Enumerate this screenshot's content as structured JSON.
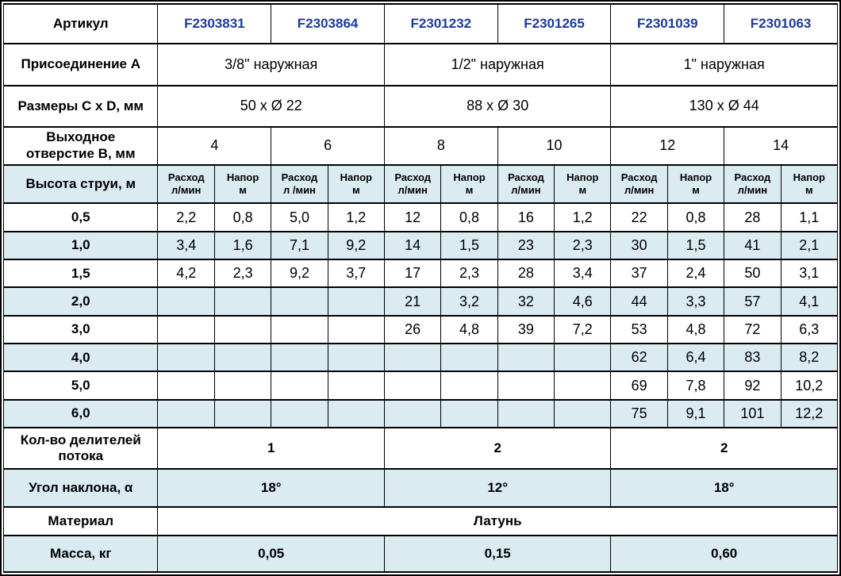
{
  "colors": {
    "row_shade": "#daebf2",
    "article_blue": "#1c3aa0",
    "border": "#000000",
    "background": "#ffffff"
  },
  "table": {
    "article": {
      "label": "Артикул",
      "values": [
        "F2303831",
        "F2303864",
        "F2301232",
        "F2301265",
        "F2301039",
        "F2301063"
      ]
    },
    "connection": {
      "label": "Присоединение А",
      "values": [
        "3/8\" наружная",
        "1/2\" наружная",
        "1\" наружная"
      ]
    },
    "dimensions": {
      "label": "Размеры C x D, мм",
      "values": [
        "50 x Ø 22",
        "88 x Ø 30",
        "130 x Ø 44"
      ]
    },
    "outlet": {
      "label_line1": "Выходное",
      "label_line2": "отверстие B, мм",
      "values": [
        "4",
        "6",
        "8",
        "10",
        "12",
        "14"
      ]
    },
    "jet": {
      "label": "Высота струи, м",
      "columns": [
        {
          "line1": "Расход",
          "line2": "л/мин"
        },
        {
          "line1": "Напор",
          "line2": "м"
        },
        {
          "line1": "Расход",
          "line2": "л /мин"
        },
        {
          "line1": "Напор",
          "line2": "м"
        },
        {
          "line1": "Расход",
          "line2": "л/мин"
        },
        {
          "line1": "Напор",
          "line2": "м"
        },
        {
          "line1": "Расход",
          "line2": "л/мин"
        },
        {
          "line1": "Напор",
          "line2": "м"
        },
        {
          "line1": "Расход",
          "line2": "л/мин"
        },
        {
          "line1": "Напор",
          "line2": "м"
        },
        {
          "line1": "Расход",
          "line2": "л/мин"
        },
        {
          "line1": "Напор",
          "line2": "м"
        }
      ]
    },
    "data_rows": [
      {
        "height": "0,5",
        "shaded": false,
        "values": [
          "2,2",
          "0,8",
          "5,0",
          "1,2",
          "12",
          "0,8",
          "16",
          "1,2",
          "22",
          "0,8",
          "28",
          "1,1"
        ]
      },
      {
        "height": "1,0",
        "shaded": true,
        "values": [
          "3,4",
          "1,6",
          "7,1",
          "9,2",
          "14",
          "1,5",
          "23",
          "2,3",
          "30",
          "1,5",
          "41",
          "2,1"
        ]
      },
      {
        "height": "1,5",
        "shaded": false,
        "values": [
          "4,2",
          "2,3",
          "9,2",
          "3,7",
          "17",
          "2,3",
          "28",
          "3,4",
          "37",
          "2,4",
          "50",
          "3,1"
        ]
      },
      {
        "height": "2,0",
        "shaded": true,
        "values": [
          "",
          "",
          "",
          "",
          "21",
          "3,2",
          "32",
          "4,6",
          "44",
          "3,3",
          "57",
          "4,1"
        ]
      },
      {
        "height": "3,0",
        "shaded": false,
        "values": [
          "",
          "",
          "",
          "",
          "26",
          "4,8",
          "39",
          "7,2",
          "53",
          "4,8",
          "72",
          "6,3"
        ]
      },
      {
        "height": "4,0",
        "shaded": true,
        "values": [
          "",
          "",
          "",
          "",
          "",
          "",
          "",
          "",
          "62",
          "6,4",
          "83",
          "8,2"
        ]
      },
      {
        "height": "5,0",
        "shaded": false,
        "values": [
          "",
          "",
          "",
          "",
          "",
          "",
          "",
          "",
          "69",
          "7,8",
          "92",
          "10,2"
        ]
      },
      {
        "height": "6,0",
        "shaded": true,
        "values": [
          "",
          "",
          "",
          "",
          "",
          "",
          "",
          "",
          "75",
          "9,1",
          "101",
          "12,2"
        ]
      }
    ],
    "dividers": {
      "label_line1": "Кол-во делителей",
      "label_line2": "потока",
      "values": [
        "1",
        "2",
        "2"
      ]
    },
    "angle": {
      "label": "Угол наклона, α",
      "values": [
        "18°",
        "12°",
        "18°"
      ]
    },
    "material": {
      "label": "Материал",
      "value": "Латунь"
    },
    "mass": {
      "label": "Масса, кг",
      "values": [
        "0,05",
        "0,15",
        "0,60"
      ]
    }
  }
}
